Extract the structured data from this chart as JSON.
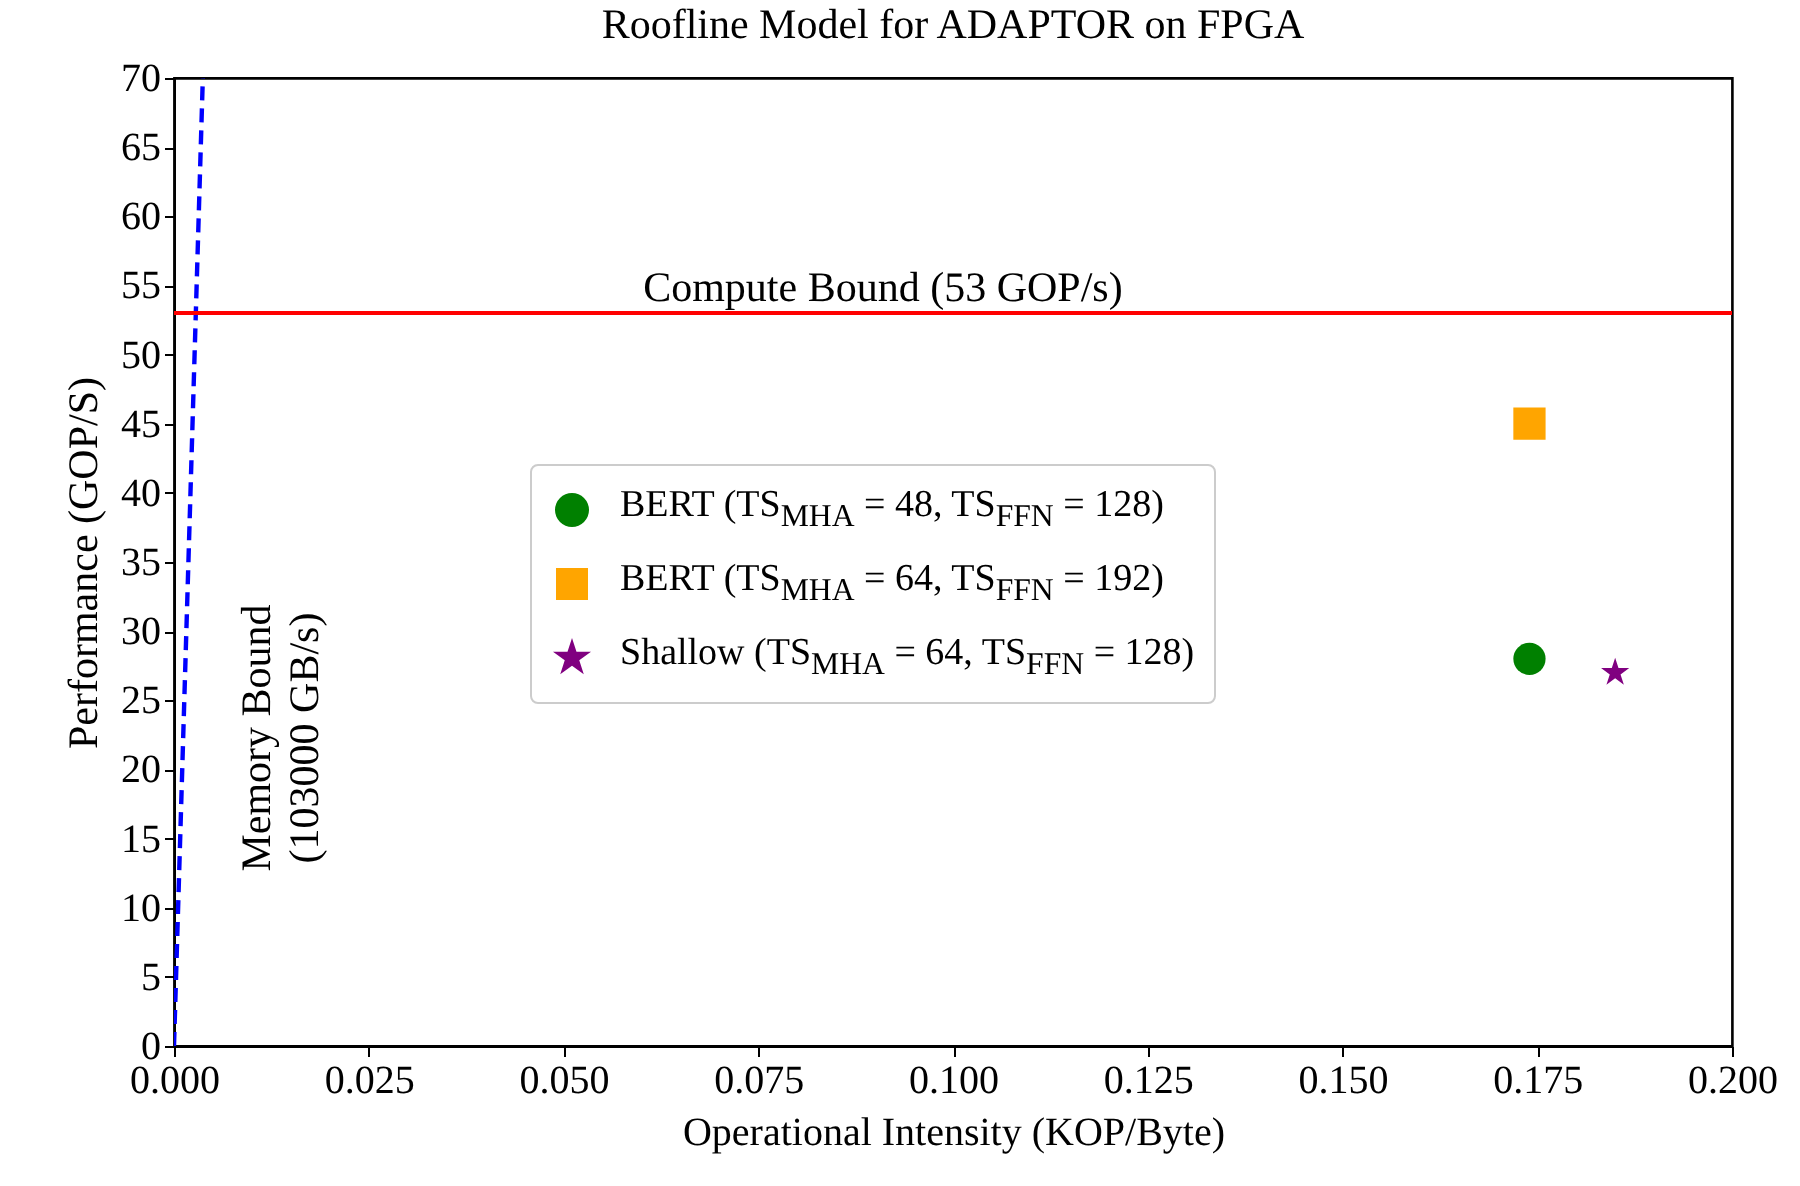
{
  "chart_data": {
    "type": "scatter",
    "title": "Roofline Model for ADAPTOR on FPGA",
    "xlabel": "Operational Intensity (KOP/Byte)",
    "ylabel": "Performance (GOP/S)",
    "xlim": [
      0,
      0.2
    ],
    "xticks": [
      {
        "value": 0,
        "label": "0.000"
      },
      0.025,
      {
        "value": 0.05,
        "label": "0.050"
      },
      0.075,
      {
        "value": 0.1,
        "label": "0.100"
      },
      0.125,
      {
        "value": 0.15,
        "label": "0.150"
      },
      0.175,
      {
        "value": 0.2,
        "label": "0.200"
      }
    ],
    "ylim": [
      0,
      70
    ],
    "yticks": [
      0,
      5,
      10,
      15,
      20,
      25,
      30,
      35,
      40,
      45,
      50,
      55,
      60,
      65,
      70
    ],
    "series": [
      {
        "type": "line",
        "color": "#0000ff",
        "line_style": "dashed",
        "x": [
          0,
          0.0037
        ],
        "values": [
          0,
          70
        ]
      },
      {
        "name": "BERT (TS$_{MHA}$ = 48, TS$_{FFN}$ = 128)",
        "color": "#008000",
        "marker": "circle",
        "x": [
          0.174
        ],
        "values": [
          28
        ]
      },
      {
        "name": "BERT (TS$_{MHA}$ = 64, TS$_{FFN}$ = 192)",
        "color": "#ffa500",
        "marker": "square",
        "x": [
          0.174
        ],
        "values": [
          45
        ]
      },
      {
        "name": "Shallow (TS$_{MHA}$ = 64, TS$_{FFN}$ = 128)",
        "color": "#800080",
        "marker": "star",
        "x": [
          0.185
        ],
        "values": [
          27
        ]
      }
    ],
    "ref_lines": [
      {
        "axis": "y",
        "value": 53,
        "label": "Compute Bound (53 GOP/s)",
        "color": "#ff0000"
      }
    ],
    "annotations": [
      "Memory Bound\n(103000 GB/s)"
    ],
    "legend": "center",
    "grid": false
  }
}
